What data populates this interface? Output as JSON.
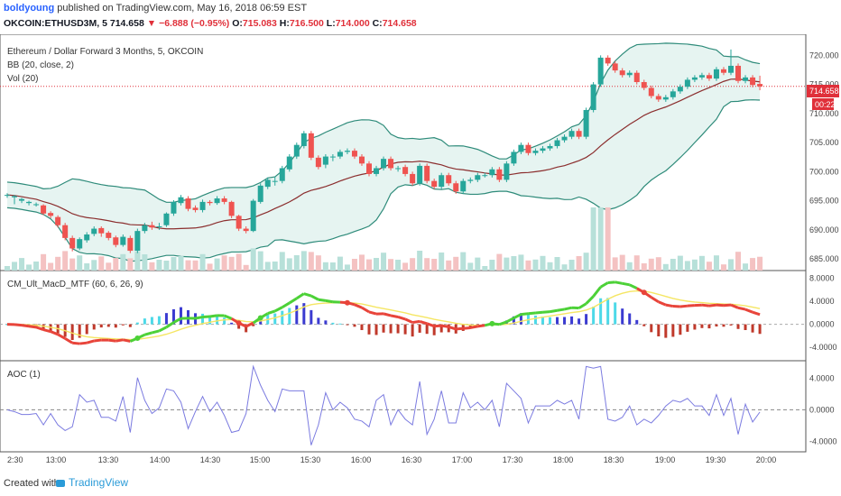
{
  "header": {
    "user": "boldyoung",
    "published_text": " published on TradingView.com, May 16, 2018 06:59 EST",
    "symbol": "OKCOIN:ETHUSD3M, 5",
    "last": "714.658",
    "change": "−6.888 (−0.95%)",
    "o_label": "O:",
    "o_val": "715.083",
    "h_label": "H:",
    "h_val": "716.500",
    "l_label": "L:",
    "l_val": "714.000",
    "c_label": "C:",
    "c_val": "714.658"
  },
  "legend": {
    "title": "Ethereum / Dollar Forward 3 Months, 5, OKCOIN",
    "bb": "BB (20, close, 2)",
    "vol": "Vol (20)",
    "macd": "CM_Ult_MacD_MTF (60, 6, 26, 9)",
    "aoc": "AOC (1)"
  },
  "price_badges": {
    "last": "714.658",
    "timer": "00:22"
  },
  "footer": {
    "created": "Created with",
    "brand": "TradingView"
  },
  "colors": {
    "up": "#26a69a",
    "down": "#ef5350",
    "bb_band": "#2e8b7a",
    "bb_fill": "#e6f4f1",
    "bb_basis": "#8b2e2e",
    "macd_up": "#4cd137",
    "macd_down": "#e8443a",
    "signal": "#f5e663",
    "hist_pos": "#4dd9e8",
    "hist_pos_dark": "#3b3bd1",
    "hist_neg": "#c0392b",
    "aoc_line": "#7b7be0"
  },
  "chart_data": {
    "type": "candlestick",
    "panes": [
      "price",
      "macd",
      "aoc"
    ],
    "x_ticks": [
      "2:30",
      "13:00",
      "13:30",
      "14:00",
      "14:30",
      "15:00",
      "15:30",
      "16:00",
      "16:30",
      "17:00",
      "17:30",
      "18:00",
      "18:30",
      "19:00",
      "19:30",
      "20:00"
    ],
    "price_axis": {
      "ticks": [
        "720.000",
        "715.000",
        "710.000",
        "705.000",
        "700.000",
        "695.000",
        "690.000",
        "685.000"
      ],
      "range": [
        683,
        723
      ]
    },
    "macd_axis": {
      "ticks": [
        "8.0000",
        "4.0000",
        "0.0000",
        "-4.0000"
      ],
      "range": [
        -6,
        9
      ]
    },
    "aoc_axis": {
      "ticks": [
        "4.0000",
        "0.0000",
        "-4.0000"
      ],
      "range": [
        -5,
        6
      ]
    },
    "candles": [
      [
        696,
        696,
        695.5,
        696.3
      ],
      [
        695.6,
        695.8,
        694.4,
        696
      ],
      [
        695.0,
        695.3,
        694.6,
        695.5
      ],
      [
        694.6,
        694.8,
        694.2,
        695
      ],
      [
        694.4,
        694.4,
        694,
        694.7
      ],
      [
        694.2,
        692.8,
        692.5,
        694.4
      ],
      [
        692.9,
        692.4,
        692,
        693.2
      ],
      [
        692.2,
        690.8,
        690.4,
        692.5
      ],
      [
        690.8,
        688.6,
        688.2,
        691.2
      ],
      [
        688.6,
        686.8,
        686.3,
        689
      ],
      [
        686.8,
        688.4,
        686.5,
        688.7
      ],
      [
        688.2,
        689.2,
        687.8,
        689.6
      ],
      [
        689.3,
        690.2,
        688.9,
        690.6
      ],
      [
        690.3,
        689.4,
        688.8,
        690.6
      ],
      [
        689.5,
        688.6,
        688.2,
        689.8
      ],
      [
        688.7,
        687.4,
        687,
        689
      ],
      [
        687.4,
        688.8,
        687.1,
        689.2
      ],
      [
        688.6,
        686.4,
        686,
        689
      ],
      [
        686.4,
        689.8,
        686,
        690.2
      ],
      [
        689.8,
        690.8,
        689.4,
        691.2
      ],
      [
        690.8,
        690.4,
        690,
        691.4
      ],
      [
        690.6,
        690.6,
        690,
        691.2
      ],
      [
        690.8,
        692.8,
        690.5,
        693
      ],
      [
        692.8,
        694.8,
        692.4,
        695.1
      ],
      [
        694.6,
        695.6,
        694.2,
        696
      ],
      [
        695.4,
        693.6,
        693.2,
        695.8
      ],
      [
        693.8,
        693.4,
        693,
        694.2
      ],
      [
        693.4,
        694.8,
        693,
        695.2
      ],
      [
        694.8,
        694.6,
        694.2,
        695.1
      ],
      [
        694.6,
        695.4,
        694.3,
        695.8
      ],
      [
        695.4,
        694.8,
        694.4,
        695.8
      ],
      [
        694.8,
        692.4,
        692,
        695
      ],
      [
        692.4,
        690.2,
        689.8,
        692.6
      ],
      [
        690.2,
        689.8,
        689.4,
        690.6
      ],
      [
        689.8,
        695.0,
        689.6,
        695.3
      ],
      [
        694.8,
        697.6,
        694.5,
        698
      ],
      [
        697.4,
        698.6,
        697,
        699
      ],
      [
        698.4,
        698.4,
        697.6,
        699.2
      ],
      [
        698.4,
        700.6,
        698,
        701
      ],
      [
        700.4,
        702.6,
        700,
        703
      ],
      [
        702.6,
        704.6,
        702.2,
        705
      ],
      [
        704.4,
        706.6,
        704,
        707
      ],
      [
        706.6,
        702.4,
        702,
        707
      ],
      [
        702.4,
        700.8,
        700.4,
        702.8
      ],
      [
        701.2,
        702.6,
        700.6,
        703
      ],
      [
        702.6,
        702.6,
        701.8,
        703
      ],
      [
        702.6,
        703.4,
        702.2,
        703.8
      ],
      [
        703.4,
        703.6,
        703,
        704
      ],
      [
        703.6,
        702.6,
        702.2,
        704
      ],
      [
        702.6,
        701.4,
        701,
        703
      ],
      [
        701.4,
        699.6,
        699.2,
        701.8
      ],
      [
        699.6,
        700.6,
        699.2,
        701
      ],
      [
        700.6,
        702.2,
        700.2,
        702.6
      ],
      [
        702.2,
        700.6,
        700.2,
        702.6
      ],
      [
        700.6,
        700.6,
        700,
        701
      ],
      [
        700.8,
        699.6,
        699.2,
        701.2
      ],
      [
        699.6,
        698.0,
        697.6,
        700
      ],
      [
        698.0,
        701.0,
        697.6,
        701.4
      ],
      [
        701.0,
        698.4,
        698,
        701.4
      ],
      [
        698.4,
        697.4,
        697,
        698.8
      ],
      [
        697.4,
        699.4,
        697,
        699.8
      ],
      [
        699.4,
        698.0,
        697.6,
        699.8
      ],
      [
        698.0,
        696.6,
        696.2,
        698.4
      ],
      [
        696.6,
        698.4,
        696.2,
        698.8
      ],
      [
        698.4,
        698.6,
        698,
        699
      ],
      [
        698.6,
        699.4,
        698.2,
        699.8
      ],
      [
        699.4,
        699.4,
        699,
        699.8
      ],
      [
        699.4,
        700.4,
        699,
        700.8
      ],
      [
        700.4,
        698.6,
        698.2,
        700.8
      ],
      [
        698.6,
        701.4,
        698.2,
        701.8
      ],
      [
        701.4,
        703.4,
        701,
        703.8
      ],
      [
        703.4,
        704.6,
        703,
        705
      ],
      [
        704.6,
        703.2,
        702.8,
        705
      ],
      [
        703.2,
        703.6,
        702.8,
        704
      ],
      [
        703.6,
        704.0,
        703.2,
        704.4
      ],
      [
        704.0,
        704.4,
        703.6,
        704.8
      ],
      [
        704.4,
        705.4,
        704,
        705.8
      ],
      [
        705.4,
        706.0,
        705,
        706.4
      ],
      [
        706.0,
        707.0,
        705.6,
        707.4
      ],
      [
        707.0,
        706.0,
        705.6,
        707.4
      ],
      [
        706.0,
        710.6,
        705.6,
        711
      ],
      [
        710.6,
        715.0,
        710.2,
        715.4
      ],
      [
        715.0,
        719.6,
        714.6,
        720
      ],
      [
        719.6,
        718.6,
        718.2,
        720
      ],
      [
        718.6,
        717.4,
        717,
        719
      ],
      [
        717.4,
        716.6,
        716.2,
        717.8
      ],
      [
        716.6,
        717.0,
        716.2,
        717.4
      ],
      [
        717.0,
        715.4,
        715,
        717.4
      ],
      [
        715.4,
        714.4,
        714,
        715.8
      ],
      [
        714.4,
        713.0,
        712.6,
        714.8
      ],
      [
        713.0,
        712.4,
        712,
        713.4
      ],
      [
        712.4,
        712.8,
        712,
        713.2
      ],
      [
        712.8,
        713.8,
        712.4,
        714.2
      ],
      [
        713.8,
        714.6,
        713.4,
        715
      ],
      [
        714.6,
        715.8,
        714.2,
        716.2
      ],
      [
        715.8,
        716.2,
        715.4,
        716.6
      ],
      [
        716.2,
        716.6,
        715.8,
        717
      ],
      [
        716.6,
        716.0,
        715.6,
        717
      ],
      [
        716.0,
        717.6,
        715.6,
        718
      ],
      [
        717.6,
        717.0,
        716.6,
        718
      ],
      [
        717.0,
        718.2,
        716.6,
        721
      ],
      [
        718.2,
        715.6,
        715.2,
        718.6
      ],
      [
        715.6,
        716.2,
        715.2,
        716.6
      ],
      [
        716.2,
        714.9,
        714.5,
        716.6
      ],
      [
        715.08,
        714.66,
        714.0,
        716.5
      ]
    ]
  }
}
